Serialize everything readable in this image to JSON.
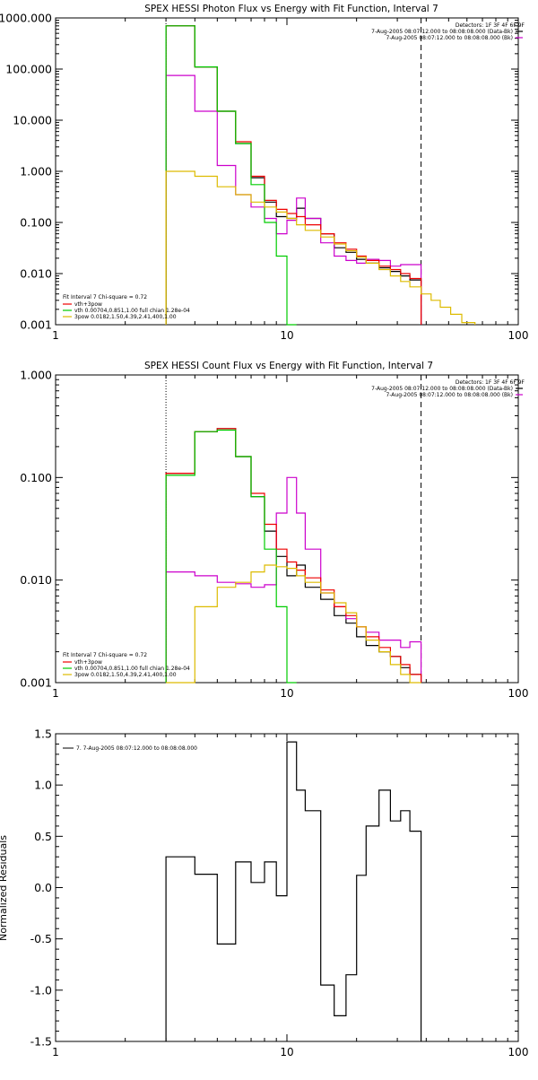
{
  "chart_data": [
    {
      "type": "line",
      "title": "SPEX HESSI Photon Flux vs Energy with Fit Function, Interval 7",
      "xlabel": "",
      "ylabel": "",
      "xscale": "log",
      "yscale": "log",
      "xlim": [
        1,
        100
      ],
      "ylim": [
        0.001,
        1000
      ],
      "x_ticks": [
        "1",
        "10",
        "100"
      ],
      "y_ticks": [
        "0.001",
        "0.010",
        "0.100",
        "1.000",
        "10.000",
        "100.000",
        "1000.000"
      ],
      "y_tick_values": [
        0.001,
        0.01,
        0.1,
        1,
        10,
        100,
        1000
      ],
      "legend_top_right": {
        "header": "Detectors: 1F 3F 4F 6F 9F",
        "entries": [
          {
            "text": "7-Aug-2005 08:07:12.000 to 08:08:08.000 (Data-Bk)",
            "color": "#000000"
          },
          {
            "text": "7-Aug-2005 08:07:12.000 to 08:08:08.000 (Bk)",
            "color": "#cc00cc"
          }
        ]
      },
      "legend_bottom_left": {
        "header": "Fit Interval 7   Chi-square = 0.72",
        "entries": [
          {
            "text": "vth+3pow",
            "color": "#ee0000"
          },
          {
            "text": "vth 0.00704,0.851,1.00   full chian 1.28e-04",
            "color": "#00cc00"
          },
          {
            "text": "3pow 0.0182,1.50,4.39,2.41,400,1.00",
            "color": "#ddbb00"
          }
        ]
      },
      "vlines": [
        {
          "x": 3,
          "style": "dotted"
        },
        {
          "x": 38,
          "style": "dashed"
        }
      ],
      "edges": [
        3,
        4,
        5,
        6,
        7,
        8,
        9,
        10,
        11,
        12,
        14,
        16,
        18,
        20,
        22,
        25,
        28,
        31,
        34,
        38
      ],
      "series": [
        {
          "color": "#000000",
          "x_range": [
            3,
            38
          ],
          "values": [
            700,
            110,
            15,
            3.5,
            0.75,
            0.25,
            0.13,
            0.12,
            0.19,
            0.12,
            0.06,
            0.032,
            0.026,
            0.019,
            0.016,
            0.013,
            0.011,
            0.009,
            0.0075
          ]
        },
        {
          "color": "#cc00cc",
          "x_range": [
            3,
            38
          ],
          "values": [
            75,
            15,
            1.3,
            0.35,
            0.2,
            0.12,
            0.06,
            0.11,
            0.3,
            0.12,
            0.04,
            0.022,
            0.018,
            0.016,
            0.019,
            0.018,
            0.014,
            0.015,
            0.015
          ]
        },
        {
          "color": "#ee0000",
          "x_range": [
            3,
            38
          ],
          "values": [
            700,
            110,
            15,
            3.8,
            0.8,
            0.27,
            0.18,
            0.15,
            0.13,
            0.09,
            0.06,
            0.04,
            0.03,
            0.022,
            0.018,
            0.014,
            0.012,
            0.01,
            0.008
          ]
        },
        {
          "color": "#00cc00",
          "x_range": [
            3,
            11
          ],
          "values": [
            700,
            110,
            15,
            3.5,
            0.55,
            0.1,
            0.022,
            0.001
          ]
        },
        {
          "color": "#ddbb00",
          "x_range": [
            3,
            65
          ],
          "edges_override": [
            3,
            4,
            5,
            6,
            7,
            8,
            9,
            10,
            11,
            12,
            14,
            16,
            18,
            20,
            22,
            25,
            28,
            31,
            34,
            38,
            42,
            46,
            51,
            57,
            65
          ],
          "values": [
            1.0,
            0.8,
            0.5,
            0.35,
            0.25,
            0.2,
            0.16,
            0.12,
            0.09,
            0.07,
            0.052,
            0.038,
            0.028,
            0.021,
            0.016,
            0.012,
            0.009,
            0.007,
            0.0055,
            0.004,
            0.003,
            0.0022,
            0.0016,
            0.0011
          ]
        }
      ]
    },
    {
      "type": "line",
      "title": "SPEX HESSI Count Flux vs Energy with Fit Function, Interval 7",
      "xlabel": "",
      "ylabel": "",
      "xscale": "log",
      "yscale": "log",
      "xlim": [
        1,
        100
      ],
      "ylim": [
        0.001,
        1
      ],
      "x_ticks": [
        "1",
        "10",
        "100"
      ],
      "y_ticks": [
        "0.001",
        "0.010",
        "0.100",
        "1.000"
      ],
      "y_tick_values": [
        0.001,
        0.01,
        0.1,
        1
      ],
      "legend_top_right": {
        "header": "Detectors: 1F 3F 4F 6F 9F",
        "entries": [
          {
            "text": "7-Aug-2005 08:07:12.000 to 08:08:08.000 (Data-Bk)",
            "color": "#000000"
          },
          {
            "text": "7-Aug-2005 08:07:12.000 to 08:08:08.000 (Bk)",
            "color": "#cc00cc"
          }
        ]
      },
      "legend_bottom_left": {
        "header": "Fit Interval 7   Chi-square = 0.72",
        "entries": [
          {
            "text": "vth+3pow",
            "color": "#ee0000"
          },
          {
            "text": "vth 0.00704,0.851,1.00   full chian 1.28e-04",
            "color": "#00cc00"
          },
          {
            "text": "3pow 0.0182,1.50,4.39,2.41,400,1.00",
            "color": "#ddbb00"
          }
        ]
      },
      "vlines": [
        {
          "x": 3,
          "style": "dotted"
        },
        {
          "x": 38,
          "style": "dashed"
        }
      ],
      "edges": [
        3,
        4,
        5,
        6,
        7,
        8,
        9,
        10,
        11,
        12,
        14,
        16,
        18,
        20,
        22,
        25,
        28,
        31,
        34,
        38
      ],
      "series": [
        {
          "color": "#000000",
          "values": [
            0.11,
            0.28,
            0.3,
            0.16,
            0.065,
            0.03,
            0.017,
            0.011,
            0.014,
            0.0085,
            0.0065,
            0.0045,
            0.0038,
            0.0028,
            0.0023,
            0.002,
            0.0018,
            0.0014,
            0.0012
          ]
        },
        {
          "color": "#cc00cc",
          "values": [
            0.012,
            0.011,
            0.0095,
            0.0092,
            0.0085,
            0.009,
            0.045,
            0.1,
            0.045,
            0.02,
            0.0075,
            0.0055,
            0.0042,
            0.0035,
            0.0031,
            0.0026,
            0.0026,
            0.0022,
            0.0025
          ]
        },
        {
          "color": "#ee0000",
          "values": [
            0.11,
            0.28,
            0.3,
            0.16,
            0.07,
            0.035,
            0.02,
            0.015,
            0.0125,
            0.0105,
            0.008,
            0.0055,
            0.0045,
            0.0035,
            0.0028,
            0.0022,
            0.0018,
            0.0015,
            0.0012
          ]
        },
        {
          "color": "#00cc00",
          "values": [
            0.105,
            0.28,
            0.29,
            0.16,
            0.065,
            0.02,
            0.0055,
            0.001
          ]
        },
        {
          "color": "#ddbb00",
          "values": [
            0.001,
            0.0055,
            0.0085,
            0.0095,
            0.012,
            0.014,
            0.0135,
            0.013,
            0.011,
            0.0095,
            0.0075,
            0.006,
            0.0048,
            0.0035,
            0.0026,
            0.002,
            0.0015,
            0.0012,
            0.001
          ]
        }
      ]
    },
    {
      "type": "line",
      "title": "",
      "xlabel": "",
      "ylabel": "Normalized Residuals",
      "xscale": "log",
      "yscale": "linear",
      "xlim": [
        1,
        100
      ],
      "ylim": [
        -1.5,
        1.5
      ],
      "x_ticks": [
        "1",
        "10",
        "100"
      ],
      "y_ticks": [
        "-1.5",
        "-1.0",
        "-0.5",
        "0.0",
        "0.5",
        "1.0",
        "1.5"
      ],
      "y_tick_values": [
        -1.5,
        -1.0,
        -0.5,
        0.0,
        0.5,
        1.0,
        1.5
      ],
      "legend": [
        {
          "text": "7.  7-Aug-2005 08:07:12.000 to 08:08:08.000",
          "color": "#000000"
        }
      ],
      "edges": [
        3,
        4,
        5,
        6,
        7,
        8,
        9,
        10,
        11,
        12,
        14,
        16,
        18,
        20,
        22,
        25,
        28,
        31,
        34,
        38
      ],
      "series": [
        {
          "color": "#000000",
          "values": [
            0.3,
            0.13,
            -0.55,
            0.25,
            0.05,
            0.25,
            -0.08,
            1.42,
            0.95,
            0.75,
            -0.95,
            -1.25,
            -0.85,
            0.12,
            0.6,
            0.95,
            0.65,
            0.75,
            0.55
          ]
        }
      ]
    }
  ]
}
